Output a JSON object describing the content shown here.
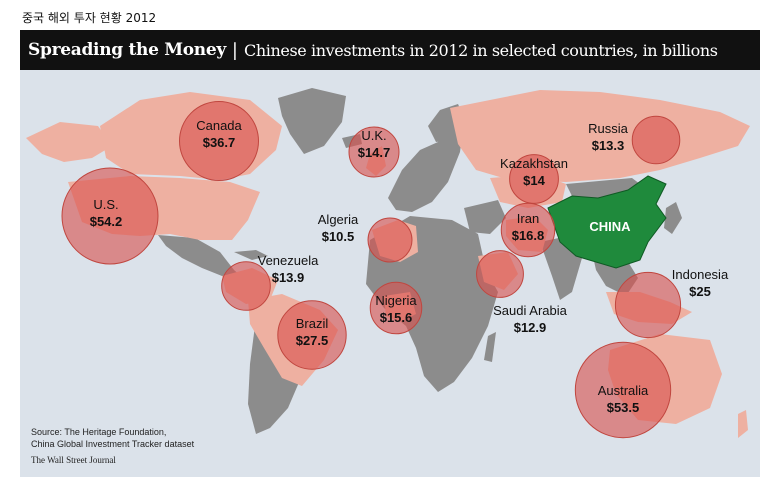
{
  "caption": "중국 해외 투자 현황  2012",
  "header": {
    "title_bold": "Spreading the Money",
    "separator": "|",
    "subtitle": "Chinese investments in 2012 in selected countries, in billions"
  },
  "colors": {
    "ocean": "#dbe2ea",
    "land_gray": "#8c8c8c",
    "land_pink": "#eeb0a1",
    "china": "#1f8a3c",
    "bubble": "#d9534f"
  },
  "china_label": "CHINA",
  "countries": [
    {
      "name": "Canada",
      "value": "$36.7",
      "amount": 36.7
    },
    {
      "name": "U.S.",
      "value": "$54.2",
      "amount": 54.2
    },
    {
      "name": "U.K.",
      "value": "$14.7",
      "amount": 14.7
    },
    {
      "name": "Russia",
      "value": "$13.3",
      "amount": 13.3
    },
    {
      "name": "Kazakhstan",
      "value": "$14",
      "amount": 14
    },
    {
      "name": "Iran",
      "value": "$16.8",
      "amount": 16.8
    },
    {
      "name": "Algeria",
      "value": "$10.5",
      "amount": 10.5
    },
    {
      "name": "Venezuela",
      "value": "$13.9",
      "amount": 13.9
    },
    {
      "name": "Nigeria",
      "value": "$15.6",
      "amount": 15.6
    },
    {
      "name": "Saudi Arabia",
      "value": "$12.9",
      "amount": 12.9
    },
    {
      "name": "Brazil",
      "value": "$27.5",
      "amount": 27.5
    },
    {
      "name": "Indonesia",
      "value": "$25",
      "amount": 25
    },
    {
      "name": "Australia",
      "value": "$53.5",
      "amount": 53.5
    }
  ],
  "source_line1": "Source: The Heritage Foundation,",
  "source_line2": "China Global Investment Tracker dataset",
  "publisher": "The Wall Street Journal"
}
